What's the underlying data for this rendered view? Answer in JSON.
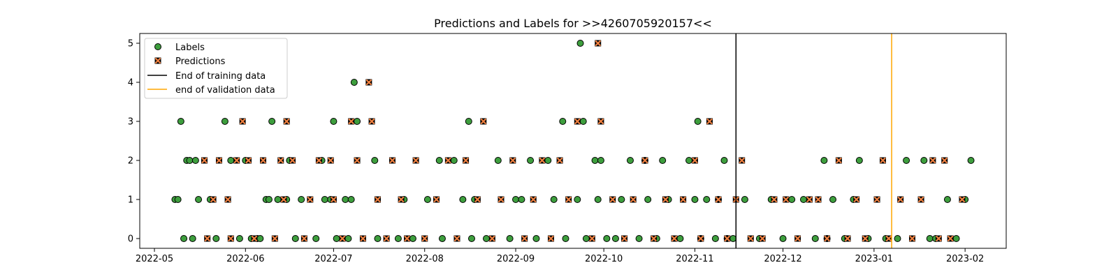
{
  "chart_data": {
    "type": "scatter",
    "title": "Predictions and Labels for >>4260705920157<<",
    "xlabel": "",
    "ylabel": "",
    "x_axis": "date",
    "xlim": [
      "2022-04-26",
      "2023-02-15"
    ],
    "ylim": [
      -0.25,
      5.25
    ],
    "x_ticks": [
      "2022-05",
      "2022-06",
      "2022-07",
      "2022-08",
      "2022-09",
      "2022-10",
      "2022-11",
      "2022-12",
      "2023-01",
      "2023-02"
    ],
    "y_ticks": [
      0,
      1,
      2,
      3,
      4,
      5
    ],
    "grid": false,
    "legend_position": "upper-left",
    "series": [
      {
        "name": "Labels",
        "marker": "circle",
        "color": "#3d9e3d",
        "edge_color": "#000000",
        "points": [
          [
            "2022-05-08",
            1
          ],
          [
            "2022-05-09",
            1
          ],
          [
            "2022-05-10",
            3
          ],
          [
            "2022-05-11",
            0
          ],
          [
            "2022-05-12",
            2
          ],
          [
            "2022-05-13",
            2
          ],
          [
            "2022-05-14",
            0
          ],
          [
            "2022-05-15",
            2
          ],
          [
            "2022-05-16",
            1
          ],
          [
            "2022-05-20",
            1
          ],
          [
            "2022-05-22",
            0
          ],
          [
            "2022-05-25",
            3
          ],
          [
            "2022-05-27",
            2
          ],
          [
            "2022-05-30",
            0
          ],
          [
            "2022-06-01",
            2
          ],
          [
            "2022-06-03",
            0
          ],
          [
            "2022-06-05",
            0
          ],
          [
            "2022-06-06",
            0
          ],
          [
            "2022-06-08",
            1
          ],
          [
            "2022-06-09",
            1
          ],
          [
            "2022-06-10",
            3
          ],
          [
            "2022-06-12",
            1
          ],
          [
            "2022-06-15",
            1
          ],
          [
            "2022-06-16",
            2
          ],
          [
            "2022-06-18",
            0
          ],
          [
            "2022-06-20",
            1
          ],
          [
            "2022-06-25",
            0
          ],
          [
            "2022-06-27",
            2
          ],
          [
            "2022-06-28",
            1
          ],
          [
            "2022-06-30",
            1
          ],
          [
            "2022-07-01",
            3
          ],
          [
            "2022-07-02",
            0
          ],
          [
            "2022-07-05",
            1
          ],
          [
            "2022-07-06",
            0
          ],
          [
            "2022-07-07",
            1
          ],
          [
            "2022-07-08",
            4
          ],
          [
            "2022-07-09",
            3
          ],
          [
            "2022-07-15",
            2
          ],
          [
            "2022-07-16",
            0
          ],
          [
            "2022-07-23",
            0
          ],
          [
            "2022-07-25",
            1
          ],
          [
            "2022-07-28",
            0
          ],
          [
            "2022-08-02",
            1
          ],
          [
            "2022-08-06",
            2
          ],
          [
            "2022-08-07",
            0
          ],
          [
            "2022-08-11",
            2
          ],
          [
            "2022-08-14",
            1
          ],
          [
            "2022-08-16",
            3
          ],
          [
            "2022-08-17",
            0
          ],
          [
            "2022-08-18",
            1
          ],
          [
            "2022-08-22",
            0
          ],
          [
            "2022-08-26",
            2
          ],
          [
            "2022-08-30",
            0
          ],
          [
            "2022-09-01",
            1
          ],
          [
            "2022-09-03",
            1
          ],
          [
            "2022-09-06",
            2
          ],
          [
            "2022-09-08",
            0
          ],
          [
            "2022-09-12",
            2
          ],
          [
            "2022-09-14",
            1
          ],
          [
            "2022-09-17",
            3
          ],
          [
            "2022-09-18",
            0
          ],
          [
            "2022-09-22",
            1
          ],
          [
            "2022-09-23",
            5
          ],
          [
            "2022-09-24",
            3
          ],
          [
            "2022-09-25",
            0
          ],
          [
            "2022-09-28",
            2
          ],
          [
            "2022-09-29",
            1
          ],
          [
            "2022-09-30",
            2
          ],
          [
            "2022-10-02",
            0
          ],
          [
            "2022-10-05",
            0
          ],
          [
            "2022-10-07",
            1
          ],
          [
            "2022-10-10",
            2
          ],
          [
            "2022-10-13",
            0
          ],
          [
            "2022-10-15",
            2
          ],
          [
            "2022-10-16",
            1
          ],
          [
            "2022-10-19",
            0
          ],
          [
            "2022-10-21",
            2
          ],
          [
            "2022-10-23",
            1
          ],
          [
            "2022-10-27",
            0
          ],
          [
            "2022-10-30",
            2
          ],
          [
            "2022-11-01",
            1
          ],
          [
            "2022-11-02",
            3
          ],
          [
            "2022-11-03",
            0
          ],
          [
            "2022-11-05",
            1
          ],
          [
            "2022-11-08",
            0
          ],
          [
            "2022-11-09",
            1
          ],
          [
            "2022-11-11",
            2
          ],
          [
            "2022-11-12",
            0
          ],
          [
            "2022-11-14",
            0
          ],
          [
            "2022-11-18",
            1
          ],
          [
            "2022-11-23",
            0
          ],
          [
            "2022-11-27",
            1
          ],
          [
            "2022-12-01",
            0
          ],
          [
            "2022-12-04",
            1
          ],
          [
            "2022-12-08",
            1
          ],
          [
            "2022-12-12",
            0
          ],
          [
            "2022-12-15",
            2
          ],
          [
            "2022-12-16",
            0
          ],
          [
            "2022-12-18",
            1
          ],
          [
            "2022-12-22",
            0
          ],
          [
            "2022-12-25",
            1
          ],
          [
            "2022-12-27",
            2
          ],
          [
            "2022-12-30",
            0
          ],
          [
            "2023-01-05",
            0
          ],
          [
            "2023-01-09",
            0
          ],
          [
            "2023-01-12",
            2
          ],
          [
            "2023-01-18",
            2
          ],
          [
            "2023-01-20",
            0
          ],
          [
            "2023-01-22",
            0
          ],
          [
            "2023-01-26",
            1
          ],
          [
            "2023-01-29",
            0
          ],
          [
            "2023-02-01",
            1
          ],
          [
            "2023-02-03",
            2
          ]
        ]
      },
      {
        "name": "Predictions",
        "marker": "x",
        "color": "#f08040",
        "edge_color": "#000000",
        "points": [
          [
            "2022-05-18",
            2
          ],
          [
            "2022-05-19",
            0
          ],
          [
            "2022-05-21",
            1
          ],
          [
            "2022-05-23",
            2
          ],
          [
            "2022-05-26",
            1
          ],
          [
            "2022-05-27",
            0
          ],
          [
            "2022-05-29",
            2
          ],
          [
            "2022-05-31",
            3
          ],
          [
            "2022-06-02",
            2
          ],
          [
            "2022-06-04",
            0
          ],
          [
            "2022-06-07",
            2
          ],
          [
            "2022-06-11",
            0
          ],
          [
            "2022-06-13",
            2
          ],
          [
            "2022-06-14",
            1
          ],
          [
            "2022-06-15",
            3
          ],
          [
            "2022-06-17",
            2
          ],
          [
            "2022-06-21",
            0
          ],
          [
            "2022-06-23",
            1
          ],
          [
            "2022-06-26",
            2
          ],
          [
            "2022-06-30",
            2
          ],
          [
            "2022-07-01",
            1
          ],
          [
            "2022-07-04",
            0
          ],
          [
            "2022-07-07",
            3
          ],
          [
            "2022-07-09",
            2
          ],
          [
            "2022-07-11",
            0
          ],
          [
            "2022-07-13",
            4
          ],
          [
            "2022-07-14",
            3
          ],
          [
            "2022-07-16",
            1
          ],
          [
            "2022-07-19",
            0
          ],
          [
            "2022-07-21",
            2
          ],
          [
            "2022-07-24",
            1
          ],
          [
            "2022-07-26",
            0
          ],
          [
            "2022-07-29",
            2
          ],
          [
            "2022-08-01",
            0
          ],
          [
            "2022-08-05",
            1
          ],
          [
            "2022-08-09",
            2
          ],
          [
            "2022-08-12",
            0
          ],
          [
            "2022-08-15",
            2
          ],
          [
            "2022-08-19",
            1
          ],
          [
            "2022-08-21",
            3
          ],
          [
            "2022-08-24",
            0
          ],
          [
            "2022-08-27",
            1
          ],
          [
            "2022-08-31",
            2
          ],
          [
            "2022-09-04",
            0
          ],
          [
            "2022-09-07",
            1
          ],
          [
            "2022-09-10",
            2
          ],
          [
            "2022-09-13",
            0
          ],
          [
            "2022-09-16",
            2
          ],
          [
            "2022-09-19",
            1
          ],
          [
            "2022-09-22",
            3
          ],
          [
            "2022-09-27",
            0
          ],
          [
            "2022-09-29",
            5
          ],
          [
            "2022-09-30",
            3
          ],
          [
            "2022-10-04",
            1
          ],
          [
            "2022-10-08",
            0
          ],
          [
            "2022-10-11",
            1
          ],
          [
            "2022-10-15",
            2
          ],
          [
            "2022-10-18",
            0
          ],
          [
            "2022-10-22",
            1
          ],
          [
            "2022-10-25",
            0
          ],
          [
            "2022-10-28",
            1
          ],
          [
            "2022-11-01",
            2
          ],
          [
            "2022-11-03",
            0
          ],
          [
            "2022-11-06",
            3
          ],
          [
            "2022-11-09",
            1
          ],
          [
            "2022-11-12",
            0
          ],
          [
            "2022-11-15",
            1
          ],
          [
            "2022-11-17",
            2
          ],
          [
            "2022-11-20",
            0
          ],
          [
            "2022-11-24",
            0
          ],
          [
            "2022-11-28",
            1
          ],
          [
            "2022-12-02",
            1
          ],
          [
            "2022-12-06",
            0
          ],
          [
            "2022-12-10",
            1
          ],
          [
            "2022-12-13",
            1
          ],
          [
            "2022-12-16",
            0
          ],
          [
            "2022-12-20",
            2
          ],
          [
            "2022-12-23",
            0
          ],
          [
            "2022-12-26",
            1
          ],
          [
            "2022-12-29",
            0
          ],
          [
            "2023-01-02",
            1
          ],
          [
            "2023-01-04",
            2
          ],
          [
            "2023-01-06",
            0
          ],
          [
            "2023-01-10",
            1
          ],
          [
            "2023-01-14",
            0
          ],
          [
            "2023-01-17",
            1
          ],
          [
            "2023-01-21",
            2
          ],
          [
            "2023-01-23",
            0
          ],
          [
            "2023-01-25",
            2
          ],
          [
            "2023-01-27",
            0
          ],
          [
            "2023-01-31",
            1
          ]
        ]
      }
    ],
    "vlines": [
      {
        "name": "End of training data",
        "x": "2022-11-15",
        "color": "#000000"
      },
      {
        "name": "end of validation data",
        "x": "2023-01-07",
        "color": "#ffa500"
      }
    ]
  }
}
